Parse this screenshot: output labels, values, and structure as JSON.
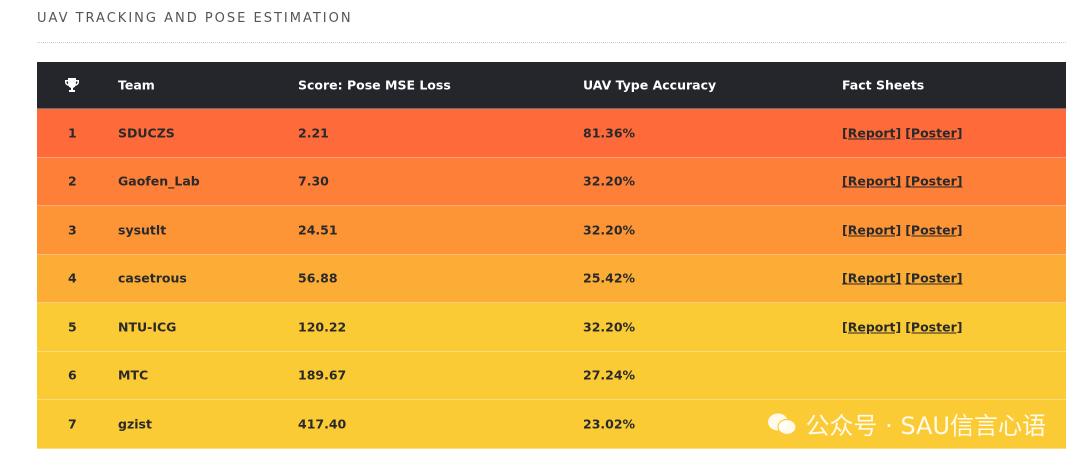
{
  "header": {
    "title": "UAV TRACKING AND POSE ESTIMATION"
  },
  "table": {
    "columns": [
      "Team",
      "Score: Pose MSE Loss",
      "UAV Type Accuracy",
      "Fact Sheets"
    ],
    "rows": [
      {
        "rank": "1",
        "team": "SDUCZS",
        "score": "2.21",
        "accuracy": "81.36%",
        "links": [
          "[Report]",
          "[Poster]"
        ],
        "color": "#fe6a3a"
      },
      {
        "rank": "2",
        "team": "Gaofen_Lab",
        "score": "7.30",
        "accuracy": "32.20%",
        "links": [
          "[Report]",
          "[Poster]"
        ],
        "color": "#fe7f38"
      },
      {
        "rank": "3",
        "team": "sysutlt",
        "score": "24.51",
        "accuracy": "32.20%",
        "links": [
          "[Report]",
          "[Poster]"
        ],
        "color": "#fd9536"
      },
      {
        "rank": "4",
        "team": "casetrous",
        "score": "56.88",
        "accuracy": "25.42%",
        "links": [
          "[Report]",
          "[Poster]"
        ],
        "color": "#fcad35"
      },
      {
        "rank": "5",
        "team": "NTU-ICG",
        "score": "120.22",
        "accuracy": "32.20%",
        "links": [
          "[Report]",
          "[Poster]"
        ],
        "color": "#fbcb36"
      },
      {
        "rank": "6",
        "team": "MTC",
        "score": "189.67",
        "accuracy": "27.24%",
        "links": [],
        "color": "#fbcb36"
      },
      {
        "rank": "7",
        "team": "gzist",
        "score": "417.40",
        "accuracy": "23.02%",
        "links": [],
        "color": "#fbcb36"
      }
    ]
  },
  "watermark": "公众号 · SAU信言心语"
}
